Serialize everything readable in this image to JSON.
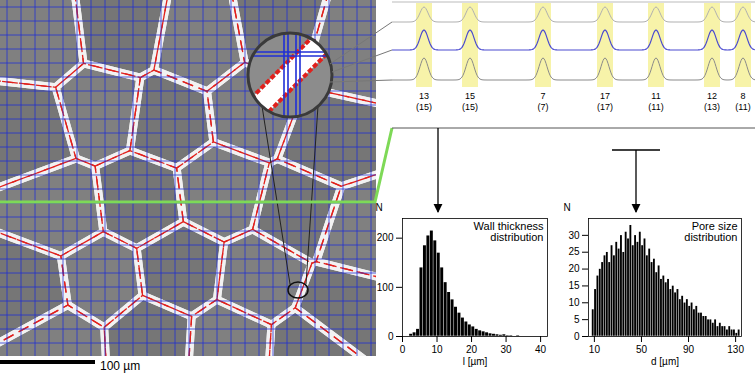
{
  "micrograph": {
    "scale_bar": "100 µm"
  },
  "profile": {
    "peaks": [
      {
        "label": "13",
        "reference": "(15)"
      },
      {
        "label": "15",
        "reference": "(15)"
      },
      {
        "label": "7",
        "reference": "(7)"
      },
      {
        "label": "17",
        "reference": "(17)"
      },
      {
        "label": "11",
        "reference": "(11)"
      },
      {
        "label": "12",
        "reference": "(13)"
      },
      {
        "label": "8",
        "reference": "(11)"
      }
    ]
  },
  "chart_data": [
    {
      "type": "histogram",
      "title": "Wall thickness distribution",
      "x_label": "l [µm]",
      "y_label": "N",
      "bins": [
        2,
        3,
        4,
        5,
        6,
        7,
        8,
        9,
        10,
        11,
        12,
        13,
        14,
        15,
        16,
        17,
        18,
        19,
        20,
        21,
        22,
        23,
        24,
        25,
        26,
        27,
        28,
        29,
        30,
        31,
        32,
        33,
        34,
        35,
        36,
        37,
        38,
        39,
        40
      ],
      "values": [
        5,
        8,
        15,
        140,
        185,
        205,
        215,
        195,
        170,
        140,
        110,
        90,
        75,
        60,
        48,
        38,
        30,
        24,
        20,
        15,
        12,
        10,
        8,
        6,
        5,
        4,
        3,
        4,
        2,
        2,
        1,
        2,
        1,
        1,
        1,
        0,
        1,
        1
      ],
      "color": "#000000",
      "xlim": [
        0,
        42
      ],
      "xticks": [
        0,
        10,
        20,
        30,
        40
      ],
      "ylim": [
        0,
        240
      ],
      "yticks": [
        0,
        100,
        200
      ]
    },
    {
      "type": "histogram",
      "title": "Pore size distribution",
      "x_label": "d [µm]",
      "y_label": "N",
      "bins": [
        8,
        10,
        12,
        14,
        16,
        18,
        20,
        22,
        24,
        26,
        28,
        30,
        32,
        34,
        36,
        38,
        40,
        42,
        44,
        46,
        48,
        50,
        52,
        54,
        56,
        58,
        60,
        62,
        64,
        66,
        68,
        70,
        72,
        74,
        76,
        78,
        80,
        82,
        84,
        86,
        88,
        90,
        92,
        94,
        96,
        98,
        100,
        102,
        104,
        106,
        108,
        110,
        112,
        114,
        116,
        118,
        120,
        122,
        124,
        126,
        128,
        130,
        132,
        134
      ],
      "values": [
        8,
        14,
        18,
        20,
        22,
        24,
        25,
        22,
        27,
        24,
        28,
        26,
        30,
        25,
        31,
        29,
        33,
        27,
        30,
        28,
        31,
        27,
        29,
        24,
        26,
        22,
        23,
        19,
        21,
        17,
        18,
        16,
        17,
        14,
        15,
        13,
        14,
        11,
        12,
        10,
        11,
        9,
        10,
        8,
        9,
        7,
        7,
        6,
        6,
        5,
        5,
        4,
        5,
        3,
        4,
        3,
        3,
        2,
        3,
        2,
        2,
        1,
        2
      ],
      "color": "#000000",
      "xlim": [
        5,
        135
      ],
      "xticks": [
        10,
        50,
        90,
        130
      ],
      "ylim": [
        0,
        35
      ],
      "yticks": [
        0,
        5,
        10,
        15,
        20,
        25,
        30
      ]
    }
  ]
}
